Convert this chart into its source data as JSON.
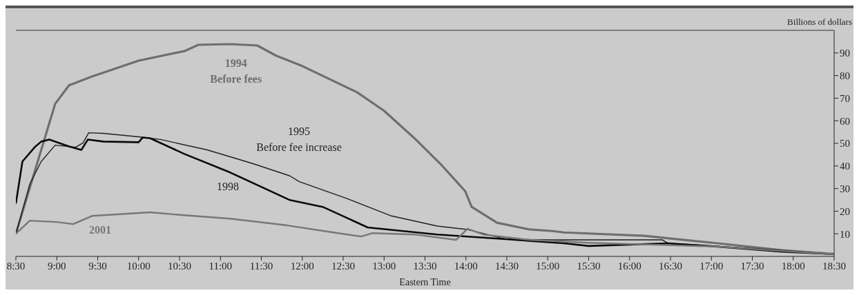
{
  "chart_data": {
    "type": "line",
    "xlabel": "Eastern Time",
    "ylabel": "Billions of dollars",
    "xlim": [
      8.5,
      18.5
    ],
    "xticks": [
      {
        "value": 8.5,
        "label": "8:30"
      },
      {
        "value": 9,
        "label": "9:00"
      },
      {
        "value": 9.5,
        "label": "9:30"
      },
      {
        "value": 10,
        "label": "10:00"
      },
      {
        "value": 10.5,
        "label": "10:30"
      },
      {
        "value": 11,
        "label": "11:00"
      },
      {
        "value": 11.5,
        "label": "11:30"
      },
      {
        "value": 12,
        "label": "12:00"
      },
      {
        "value": 12.5,
        "label": "12:30"
      },
      {
        "value": 13,
        "label": "13:00"
      },
      {
        "value": 13.5,
        "label": "13:30"
      },
      {
        "value": 14,
        "label": "14:00"
      },
      {
        "value": 14.5,
        "label": "14:30"
      },
      {
        "value": 15,
        "label": "15:00"
      },
      {
        "value": 15.5,
        "label": "15:30"
      },
      {
        "value": 16,
        "label": "16:00"
      },
      {
        "value": 16.5,
        "label": "16:30"
      },
      {
        "value": 17,
        "label": "17:00"
      },
      {
        "value": 17.5,
        "label": "17:30"
      },
      {
        "value": 18,
        "label": "18:00"
      },
      {
        "value": 18.5,
        "label": "18:30"
      }
    ],
    "ylim": [
      0,
      100
    ],
    "yticks": [
      10,
      20,
      30,
      40,
      50,
      60,
      70,
      80,
      90
    ],
    "grid": false,
    "marker": "none",
    "line_style": "solid",
    "series": [
      {
        "name": "1994",
        "color": "#6e6e6e",
        "x": [
          8.5,
          8.98,
          9.15,
          9.43,
          10.0,
          10.56,
          10.73,
          11.12,
          11.45,
          11.68,
          12.0,
          12.67,
          13.0,
          13.37,
          13.71,
          13.99,
          14.07,
          14.38,
          14.78,
          15.06,
          15.2,
          16.18,
          17.08,
          17.87,
          18.5
        ],
        "values": [
          10,
          67.5,
          75.7,
          79.6,
          86.6,
          90.8,
          93.6,
          93.9,
          93.3,
          88.8,
          84.2,
          72.6,
          64.4,
          52.3,
          40.1,
          28.9,
          21.9,
          14.9,
          11.9,
          11.2,
          10.6,
          9.1,
          5.8,
          2.7,
          1
        ]
      },
      {
        "name": "1995",
        "color": "#1e1e1e",
        "x": [
          8.5,
          8.67,
          8.81,
          8.98,
          9.23,
          9.32,
          9.39,
          9.57,
          10.0,
          10.27,
          10.84,
          11.4,
          11.85,
          11.96,
          12.53,
          13.09,
          13.65,
          14.02,
          14.49,
          15.06,
          16.4,
          16.47,
          17.02,
          17.87,
          18.5
        ],
        "values": [
          10,
          32,
          42,
          49.2,
          48.3,
          50.2,
          54.7,
          54.4,
          52.9,
          51.7,
          47.1,
          41,
          35.6,
          33.1,
          25.8,
          17.9,
          13.4,
          11.9,
          7.6,
          7.3,
          7.3,
          5.8,
          4.6,
          2.7,
          1
        ]
      },
      {
        "name": "1998",
        "color": "#0a0a0a",
        "x": [
          8.5,
          8.58,
          8.73,
          8.81,
          8.91,
          9.15,
          9.3,
          9.38,
          9.57,
          10.0,
          10.05,
          10.14,
          10.56,
          11.12,
          11.85,
          12.25,
          12.8,
          13.65,
          14.49,
          15.2,
          15.5,
          16.47,
          17.08,
          17.87,
          18.5
        ],
        "values": [
          23.4,
          42,
          48.3,
          50.8,
          51.7,
          48.6,
          47.1,
          51.7,
          50.8,
          50.5,
          52.6,
          52.3,
          45.3,
          37.1,
          24.9,
          21.9,
          12.8,
          9.7,
          7.6,
          5.8,
          4.6,
          5.8,
          4.3,
          2.1,
          1
        ]
      },
      {
        "name": "2001",
        "color": "#777777",
        "x": [
          8.5,
          8.67,
          9.0,
          9.2,
          9.43,
          10.14,
          10.56,
          11.12,
          11.82,
          12.38,
          12.72,
          12.86,
          13.37,
          13.88,
          14.02,
          14.21,
          14.78,
          15.5,
          16.47,
          17.08,
          17.87,
          18.5
        ],
        "values": [
          10,
          15.8,
          15.2,
          14.3,
          17.9,
          19.5,
          18.2,
          16.7,
          13.7,
          10.6,
          8.8,
          10.3,
          9.7,
          7.3,
          12.2,
          9.7,
          7.3,
          6,
          5,
          4.3,
          2.4,
          1
        ]
      }
    ],
    "annotations": [
      "Before fees",
      "Before fee increase"
    ]
  }
}
